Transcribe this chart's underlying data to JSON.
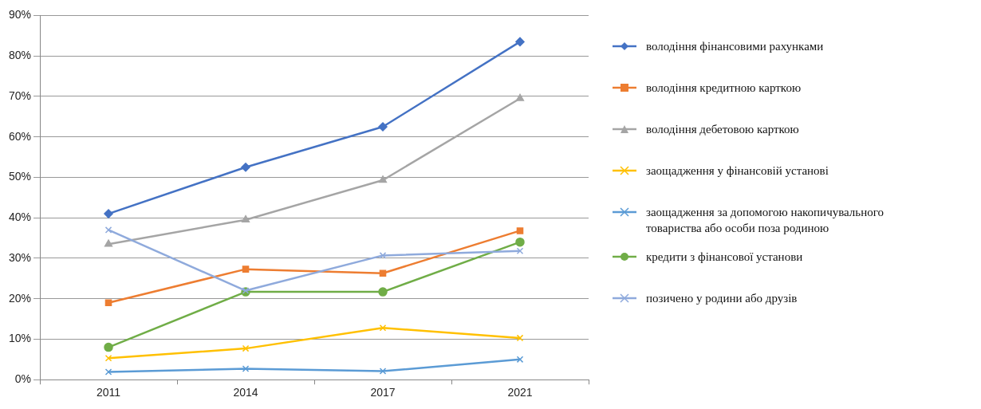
{
  "chart_data": {
    "type": "line",
    "categories": [
      "2011",
      "2014",
      "2017",
      "2021"
    ],
    "ylim": [
      0,
      90
    ],
    "yticks": [
      {
        "value": 0,
        "label": "0%"
      },
      {
        "value": 10,
        "label": "10%"
      },
      {
        "value": 20,
        "label": "20%"
      },
      {
        "value": 30,
        "label": "30%"
      },
      {
        "value": 40,
        "label": "40%"
      },
      {
        "value": 50,
        "label": "50%"
      },
      {
        "value": 60,
        "label": "60%"
      },
      {
        "value": 70,
        "label": "70%"
      },
      {
        "value": 80,
        "label": "80%"
      },
      {
        "value": 90,
        "label": "90%"
      }
    ],
    "grid": "y",
    "legend": "right",
    "series": [
      {
        "name": "володіння фінансовими рахунками",
        "color": "#4472c4",
        "marker": "diamond",
        "values": [
          41,
          52.5,
          62.5,
          83.5
        ]
      },
      {
        "name": "володіння кредитною карткою",
        "color": "#ed7d31",
        "marker": "square",
        "values": [
          19,
          27.3,
          26.3,
          36.8
        ]
      },
      {
        "name": "володіння дебетовою карткою",
        "color": "#a5a5a5",
        "marker": "triangle",
        "values": [
          33.5,
          39.5,
          49.3,
          69.5
        ]
      },
      {
        "name": "заощадження у фінансовій установі",
        "color": "#ffc000",
        "marker": "cross",
        "values": [
          5.3,
          7.7,
          12.8,
          10.3
        ]
      },
      {
        "name": "заощадження за допомогою накопичувального товариства або особи поза родиною",
        "color": "#5b9bd5",
        "marker": "cross",
        "values": [
          1.9,
          2.7,
          2.1,
          5
        ]
      },
      {
        "name": "кредити з фінансової установи",
        "color": "#70ad47",
        "marker": "circle",
        "values": [
          8,
          21.7,
          21.7,
          34
        ]
      },
      {
        "name": "позичено у родини або друзів",
        "color": "#8faadc",
        "marker": "cross",
        "values": [
          37,
          22,
          30.7,
          31.8
        ]
      }
    ]
  }
}
